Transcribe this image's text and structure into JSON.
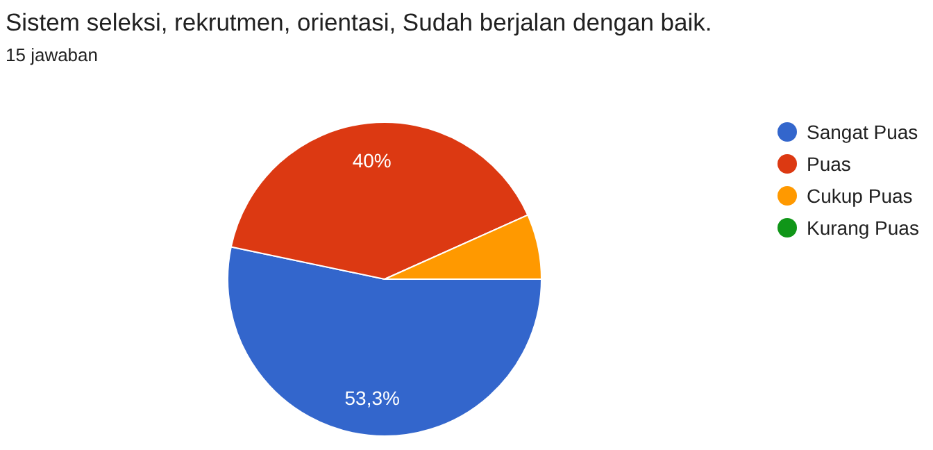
{
  "chart_data": {
    "type": "pie",
    "title": "Sistem seleksi, rekrutmen, orientasi, Sudah berjalan dengan baik.",
    "subtitle": "15 jawaban",
    "categories": [
      "Sangat Puas",
      "Puas",
      "Cukup Puas",
      "Kurang Puas"
    ],
    "values": [
      53.3,
      40,
      6.7,
      0
    ],
    "colors": [
      "#3366cc",
      "#dc3912",
      "#ff9900",
      "#109618"
    ],
    "value_labels": [
      "53,3%",
      "40%",
      null,
      null
    ],
    "legend": "right"
  }
}
